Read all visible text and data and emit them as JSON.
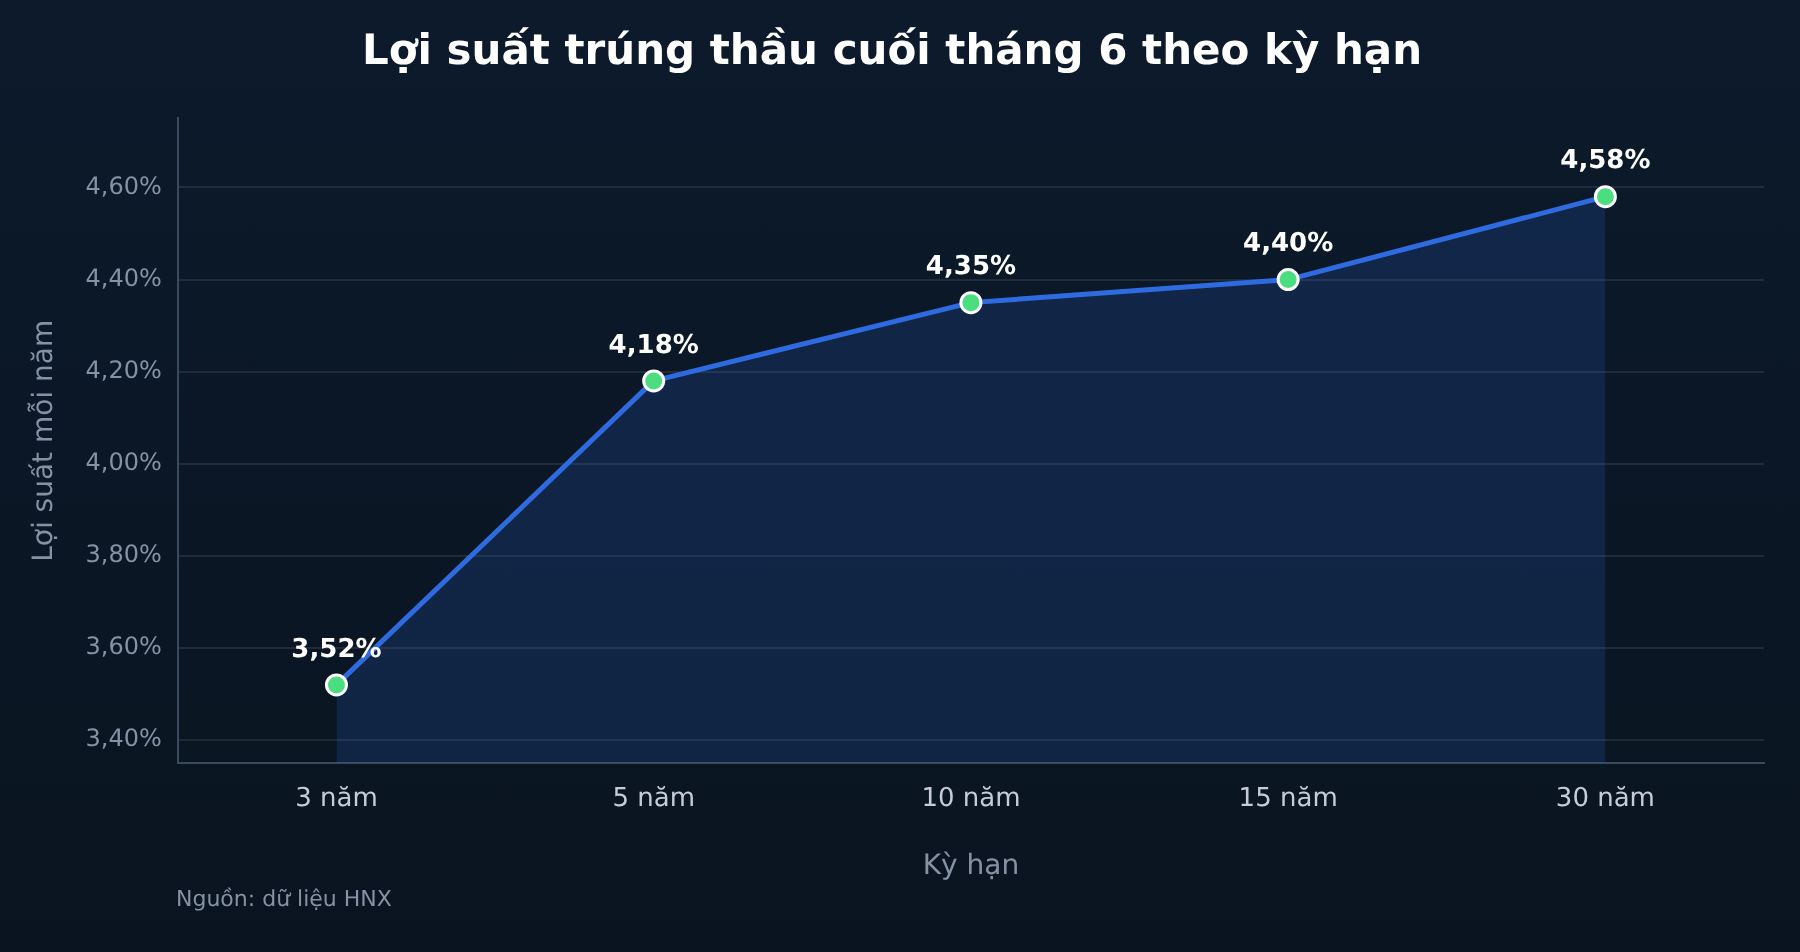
{
  "chart_data": {
    "type": "area",
    "title": "Lợi suất trúng thầu cuối tháng 6 theo kỳ hạn",
    "xlabel": "Kỳ hạn",
    "ylabel": "Lợi suất mỗi năm",
    "annotations": [
      "Nguồn: dữ liệu HNX"
    ],
    "categories": [
      "3 năm",
      "5 năm",
      "10 năm",
      "15 năm",
      "30 năm"
    ],
    "series": [
      {
        "color": "#2f6be0",
        "values": [
          3.52,
          4.18,
          4.35,
          4.4,
          4.58
        ],
        "value_labels": [
          "3,52%",
          "4,18%",
          "4,35%",
          "4,40%",
          "4,58%"
        ]
      }
    ],
    "ylim": [
      3.35,
      4.75
    ],
    "yticks": [
      {
        "value": 3.4,
        "label": "3,40%"
      },
      {
        "value": 3.6,
        "label": "3,60%"
      },
      {
        "value": 3.8,
        "label": "3,80%"
      },
      {
        "value": 4.0,
        "label": "4,00%"
      },
      {
        "value": 4.2,
        "label": "4,20%"
      },
      {
        "value": 4.4,
        "label": "4,40%"
      },
      {
        "value": 4.6,
        "label": "4,60%"
      }
    ],
    "grid": "y",
    "legend": false,
    "marker": "circle",
    "line_style": "solid"
  }
}
